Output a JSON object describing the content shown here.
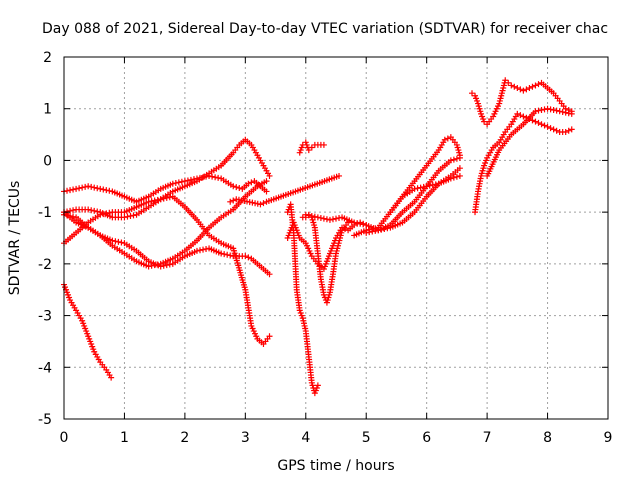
{
  "chart_data": {
    "type": "scatter",
    "title": "Day 088 of 2021, Sidereal Day-to-day VTEC variation (SDTVAR) for receiver chac",
    "xlabel": "GPS time / hours",
    "ylabel": "SDTVAR / TECUs",
    "xlim": [
      0,
      9
    ],
    "ylim": [
      -5,
      2
    ],
    "xticks": [
      0,
      1,
      2,
      3,
      4,
      5,
      6,
      7,
      8,
      9
    ],
    "yticks": [
      -5,
      -4,
      -3,
      -2,
      -1,
      0,
      1,
      2
    ],
    "grid": true,
    "marker": "plus",
    "color": "#ff0000",
    "series": [
      {
        "x": [
          0.0,
          0.2,
          0.4,
          0.6,
          0.8,
          1.0,
          1.2,
          1.4,
          1.6,
          1.8,
          2.0,
          2.2,
          2.4,
          2.6,
          2.8,
          2.95,
          3.05,
          3.15,
          3.25,
          3.35
        ],
        "y": [
          -0.6,
          -0.55,
          -0.5,
          -0.55,
          -0.6,
          -0.7,
          -0.8,
          -0.7,
          -0.55,
          -0.45,
          -0.4,
          -0.35,
          -0.3,
          -0.35,
          -0.5,
          -0.55,
          -0.45,
          -0.4,
          -0.5,
          -0.6
        ]
      },
      {
        "x": [
          0.0,
          0.2,
          0.4,
          0.6,
          0.8,
          1.0,
          1.2,
          1.4,
          1.6,
          1.8,
          2.0,
          2.2,
          2.4,
          2.6,
          2.8,
          2.9,
          3.0,
          3.1,
          3.2,
          3.3,
          3.4
        ],
        "y": [
          -1.0,
          -0.95,
          -0.95,
          -1.0,
          -1.1,
          -1.1,
          -1.05,
          -0.9,
          -0.75,
          -0.6,
          -0.5,
          -0.4,
          -0.25,
          -0.1,
          0.15,
          0.3,
          0.4,
          0.3,
          0.1,
          -0.1,
          -0.3
        ]
      },
      {
        "x": [
          0.0,
          0.2,
          0.4,
          0.6,
          0.8,
          1.0,
          1.2,
          1.4,
          1.6,
          1.8,
          2.0,
          2.2,
          2.4,
          2.6,
          2.8,
          3.0,
          3.1,
          3.2,
          3.3,
          3.4
        ],
        "y": [
          -1.6,
          -1.4,
          -1.2,
          -1.05,
          -1.0,
          -1.0,
          -0.9,
          -0.8,
          -0.75,
          -0.7,
          -0.9,
          -1.15,
          -1.45,
          -1.6,
          -1.7,
          -2.5,
          -3.2,
          -3.45,
          -3.55,
          -3.4
        ]
      },
      {
        "x": [
          0.0,
          0.2,
          0.4,
          0.6,
          0.8,
          1.0,
          1.2,
          1.4,
          1.6,
          1.8,
          2.0,
          2.2,
          2.4,
          2.6,
          2.8,
          3.0,
          3.1,
          3.2,
          3.3,
          3.4
        ],
        "y": [
          -1.0,
          -1.2,
          -1.3,
          -1.45,
          -1.55,
          -1.6,
          -1.75,
          -1.95,
          -2.05,
          -2.0,
          -1.85,
          -1.75,
          -1.7,
          -1.8,
          -1.85,
          -1.85,
          -1.9,
          -2.0,
          -2.1,
          -2.2
        ]
      },
      {
        "x": [
          0.0,
          0.2,
          0.4,
          0.6,
          0.8,
          1.0,
          1.2,
          1.4,
          1.6,
          1.8,
          2.0,
          2.2,
          2.4,
          2.6,
          2.8,
          3.0,
          3.2,
          3.35
        ],
        "y": [
          -1.05,
          -1.1,
          -1.3,
          -1.45,
          -1.65,
          -1.8,
          -1.95,
          -2.05,
          -2.0,
          -1.9,
          -1.75,
          -1.55,
          -1.3,
          -1.1,
          -0.95,
          -0.7,
          -0.5,
          -0.4
        ]
      },
      {
        "x": [
          0.0,
          0.1,
          0.2,
          0.3,
          0.4,
          0.5,
          0.6,
          0.7,
          0.78
        ],
        "y": [
          -2.4,
          -2.7,
          -2.9,
          -3.1,
          -3.4,
          -3.7,
          -3.9,
          -4.05,
          -4.2
        ]
      },
      {
        "x": [
          3.7,
          3.75,
          3.8,
          3.85,
          3.9,
          3.95,
          4.0,
          4.05,
          4.1,
          4.15,
          4.2
        ],
        "y": [
          -1.0,
          -0.85,
          -1.4,
          -2.5,
          -2.9,
          -3.05,
          -3.3,
          -3.8,
          -4.3,
          -4.5,
          -4.35
        ]
      },
      {
        "x": [
          3.9,
          3.95,
          4.0,
          4.05,
          4.1,
          4.15,
          4.2,
          4.3
        ],
        "y": [
          0.15,
          0.3,
          0.35,
          0.2,
          0.25,
          0.3,
          0.3,
          0.3
        ]
      },
      {
        "x": [
          3.7,
          3.8,
          3.9,
          4.0,
          4.1,
          4.2,
          4.3,
          4.4,
          4.5,
          4.6,
          4.7,
          4.8,
          4.9,
          5.0
        ],
        "y": [
          -1.5,
          -1.2,
          -1.5,
          -1.6,
          -1.85,
          -2.0,
          -2.1,
          -1.8,
          -1.5,
          -1.3,
          -1.35,
          -1.25,
          -1.2,
          -1.25
        ]
      },
      {
        "x": [
          3.95,
          4.0,
          4.05,
          4.1,
          4.15,
          4.2,
          4.25,
          4.3,
          4.35,
          4.4,
          4.45,
          4.5,
          4.6,
          4.7
        ],
        "y": [
          -1.1,
          -1.1,
          -1.05,
          -1.1,
          -1.3,
          -1.8,
          -2.3,
          -2.6,
          -2.75,
          -2.55,
          -2.2,
          -1.8,
          -1.35,
          -1.2
        ]
      },
      {
        "x": [
          4.0,
          4.2,
          4.4,
          4.6,
          4.8,
          5.0,
          5.2,
          5.4,
          5.6,
          5.8,
          6.0,
          6.2,
          6.4,
          6.55
        ],
        "y": [
          -1.05,
          -1.1,
          -1.15,
          -1.1,
          -1.2,
          -1.25,
          -1.35,
          -1.3,
          -1.2,
          -1.0,
          -0.7,
          -0.45,
          -0.35,
          -0.3
        ]
      },
      {
        "x": [
          4.8,
          5.0,
          5.2,
          5.4,
          5.6,
          5.8,
          6.0,
          6.2,
          6.3,
          6.4,
          6.5,
          6.55
        ],
        "y": [
          -1.45,
          -1.35,
          -1.3,
          -1.0,
          -0.7,
          -0.4,
          -0.1,
          0.2,
          0.4,
          0.45,
          0.3,
          0.1
        ]
      },
      {
        "x": [
          5.0,
          5.2,
          5.4,
          5.6,
          5.8,
          6.0,
          6.2,
          6.4,
          6.55
        ],
        "y": [
          -1.4,
          -1.35,
          -1.25,
          -1.0,
          -0.8,
          -0.5,
          -0.2,
          0.0,
          0.05
        ]
      },
      {
        "x": [
          5.4,
          5.6,
          5.8,
          6.0,
          6.2,
          6.4,
          6.55
        ],
        "y": [
          -1.0,
          -0.7,
          -0.55,
          -0.5,
          -0.45,
          -0.3,
          -0.15
        ]
      },
      {
        "x": [
          6.8,
          6.85,
          6.9,
          6.95,
          7.0,
          7.05,
          7.1,
          7.2,
          7.3,
          7.4,
          7.5,
          7.6,
          7.7,
          7.8,
          7.9,
          8.0,
          8.1,
          8.2,
          8.3,
          8.4
        ],
        "y": [
          -1.0,
          -0.6,
          -0.3,
          -0.1,
          0.05,
          0.15,
          0.25,
          0.35,
          0.55,
          0.7,
          0.9,
          0.85,
          0.8,
          0.75,
          0.7,
          0.65,
          0.6,
          0.55,
          0.55,
          0.6
        ]
      },
      {
        "x": [
          6.75,
          6.8,
          6.85,
          6.9,
          6.95,
          7.0,
          7.1,
          7.2,
          7.3,
          7.35,
          7.4,
          7.5,
          7.6,
          7.7,
          7.8,
          7.9,
          8.0,
          8.1,
          8.2,
          8.3,
          8.4
        ],
        "y": [
          1.3,
          1.25,
          1.1,
          0.9,
          0.75,
          0.7,
          0.85,
          1.1,
          1.55,
          1.5,
          1.45,
          1.4,
          1.35,
          1.4,
          1.45,
          1.5,
          1.4,
          1.3,
          1.15,
          1.0,
          0.95
        ]
      },
      {
        "x": [
          7.0,
          7.2,
          7.4,
          7.6,
          7.8,
          8.0,
          8.2,
          8.4
        ],
        "y": [
          -0.3,
          0.2,
          0.5,
          0.7,
          0.95,
          1.0,
          0.95,
          0.9
        ]
      },
      {
        "x": [
          2.75,
          2.85,
          3.25,
          3.35,
          4.55
        ],
        "y": [
          -0.8,
          -0.75,
          -0.85,
          -0.8,
          -0.3
        ]
      }
    ]
  }
}
